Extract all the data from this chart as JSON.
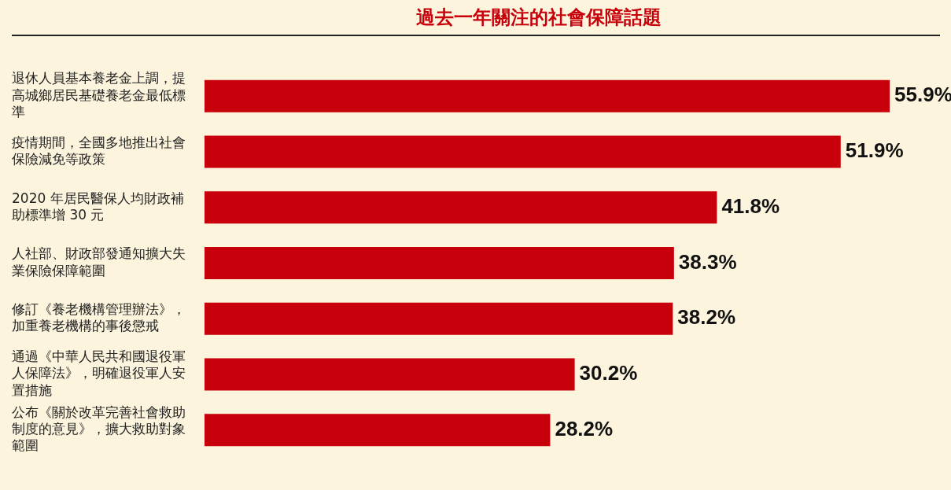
{
  "chart_data": {
    "type": "bar",
    "orientation": "horizontal",
    "title": "過去一年關注的社會保障話題",
    "categories": [
      "退休人員基本養老金上調，提高城鄉居民基礎養老金最低標準",
      "疫情期間，全國多地推出社會保險減免等政策",
      "2020 年居民醫保人均財政補助標準增 30 元",
      "人社部、財政部發通知擴大失業保險保障範圍",
      "修訂《養老機構管理辦法》，加重養老機構的事後懲戒",
      "通過《中華人民共和國退役軍人保障法》，明確退役軍人安置措施",
      "公布《關於改革完善社會救助制度的意見》，擴大救助對象範圍"
    ],
    "values": [
      55.9,
      51.9,
      41.8,
      38.3,
      38.2,
      30.2,
      28.2
    ],
    "value_labels": [
      "55.9%",
      "51.9%",
      "41.8%",
      "38.3%",
      "38.2%",
      "30.2%",
      "28.2%"
    ],
    "color": "#c8000b",
    "tick_labels": "y",
    "grid": false,
    "legend": false
  }
}
